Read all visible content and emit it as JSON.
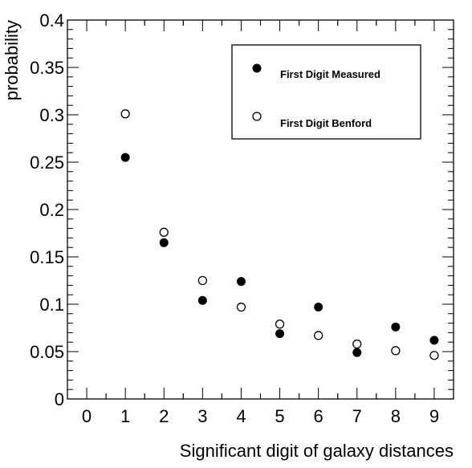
{
  "chart_data": {
    "type": "scatter",
    "xlabel": "Significant digit of galaxy distances",
    "ylabel": "probability",
    "xlim": [
      -0.5,
      9.5
    ],
    "ylim": [
      0,
      0.4
    ],
    "xticks": [
      "0",
      "1",
      "2",
      "3",
      "4",
      "5",
      "6",
      "7",
      "8",
      "9"
    ],
    "yticks": [
      "0",
      "0.05",
      "0.1",
      "0.15",
      "0.2",
      "0.25",
      "0.3",
      "0.35",
      "0.4"
    ],
    "grid": false,
    "legend_position": "top-right",
    "series": [
      {
        "name": "First Digit Measured",
        "marker": "filled-circle",
        "color": "#000000",
        "x": [
          1,
          2,
          3,
          4,
          5,
          6,
          7,
          8,
          9
        ],
        "y": [
          0.255,
          0.165,
          0.104,
          0.124,
          0.069,
          0.097,
          0.049,
          0.076,
          0.062
        ]
      },
      {
        "name": "First Digit Benford",
        "marker": "open-circle",
        "color": "#000000",
        "x": [
          1,
          2,
          3,
          4,
          5,
          6,
          7,
          8,
          9
        ],
        "y": [
          0.301,
          0.176,
          0.125,
          0.097,
          0.079,
          0.067,
          0.058,
          0.051,
          0.046
        ]
      }
    ]
  }
}
